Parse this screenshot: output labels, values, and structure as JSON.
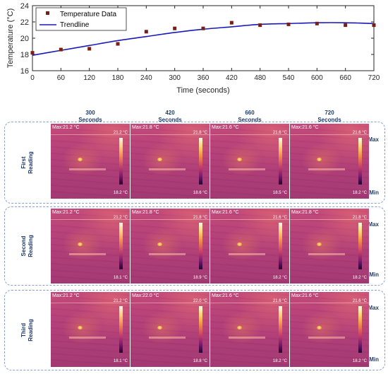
{
  "chart_data": {
    "type": "scatter",
    "xlabel": "Time (seconds)",
    "ylabel": "Temperature (°C)",
    "xlim": [
      0,
      720
    ],
    "ylim": [
      16,
      24
    ],
    "xticks": [
      "0",
      "60",
      "120",
      "180",
      "240",
      "300",
      "360",
      "420",
      "480",
      "540",
      "600",
      "660",
      "720"
    ],
    "yticks": [
      "16",
      "18",
      "20",
      "22",
      "24"
    ],
    "legend_position": "top-left",
    "grid": false,
    "series": [
      {
        "name": "Temperature Data",
        "marker": "square",
        "color": "#7a1f14",
        "points": [
          [
            0,
            18.2
          ],
          [
            60,
            18.6
          ],
          [
            120,
            18.7
          ],
          [
            180,
            19.3
          ],
          [
            240,
            20.8
          ],
          [
            300,
            21.2
          ],
          [
            360,
            21.2
          ],
          [
            420,
            21.9
          ],
          [
            480,
            21.6
          ],
          [
            540,
            21.7
          ],
          [
            600,
            21.8
          ],
          [
            660,
            21.6
          ],
          [
            720,
            21.6
          ]
        ]
      },
      {
        "name": "Trendline",
        "type": "line",
        "color": "#1a1ab8",
        "points": [
          [
            0,
            17.9
          ],
          [
            60,
            18.5
          ],
          [
            120,
            19.1
          ],
          [
            180,
            19.7
          ],
          [
            240,
            20.2
          ],
          [
            300,
            20.7
          ],
          [
            360,
            21.1
          ],
          [
            420,
            21.4
          ],
          [
            480,
            21.7
          ],
          [
            540,
            21.8
          ],
          [
            600,
            21.9
          ],
          [
            660,
            21.9
          ],
          [
            720,
            21.8
          ]
        ]
      }
    ]
  },
  "thermal_grid": {
    "columns": [
      {
        "value": "300",
        "unit": "Seconds"
      },
      {
        "value": "420",
        "unit": "Seconds"
      },
      {
        "value": "660",
        "unit": "Seconds"
      },
      {
        "value": "720",
        "unit": "Seconds"
      }
    ],
    "scale_max_label": "Max",
    "scale_min_label": "Min",
    "rows": [
      {
        "label_line1": "First",
        "label_line2": "Reading",
        "images": [
          {
            "max_label": "Max:21.2 °C",
            "scale_max": "21.2 °C",
            "scale_min": "18.2 °C"
          },
          {
            "max_label": "Max:21.8 °C",
            "scale_max": "21.8 °C",
            "scale_min": "18.6 °C"
          },
          {
            "max_label": "Max:21.6 °C",
            "scale_max": "21.6 °C",
            "scale_min": "18.5 °C"
          },
          {
            "max_label": "Max:21.6 °C",
            "scale_max": "21.6 °C",
            "scale_min": "18.2 °C"
          }
        ]
      },
      {
        "label_line1": "Second",
        "label_line2": "Reading",
        "images": [
          {
            "max_label": "Max:21.2 °C",
            "scale_max": "21.2 °C",
            "scale_min": "18.1 °C"
          },
          {
            "max_label": "Max:21.8 °C",
            "scale_max": "21.8 °C",
            "scale_min": "18.9 °C"
          },
          {
            "max_label": "Max:21.6 °C",
            "scale_max": "21.6 °C",
            "scale_min": "18.2 °C"
          },
          {
            "max_label": "Max:21.8 °C",
            "scale_max": "21.8 °C",
            "scale_min": "18.2 °C"
          }
        ]
      },
      {
        "label_line1": "Third",
        "label_line2": "Reading",
        "images": [
          {
            "max_label": "Max:21.2 °C",
            "scale_max": "21.2 °C",
            "scale_min": "18.1 °C"
          },
          {
            "max_label": "Max:22.0 °C",
            "scale_max": "22.0 °C",
            "scale_min": "18.8 °C"
          },
          {
            "max_label": "Max:21.6 °C",
            "scale_max": "21.6 °C",
            "scale_min": "18.2 °C"
          },
          {
            "max_label": "Max:21.6 °C",
            "scale_max": "21.6 °C",
            "scale_min": "18.2 °C"
          }
        ]
      }
    ]
  }
}
